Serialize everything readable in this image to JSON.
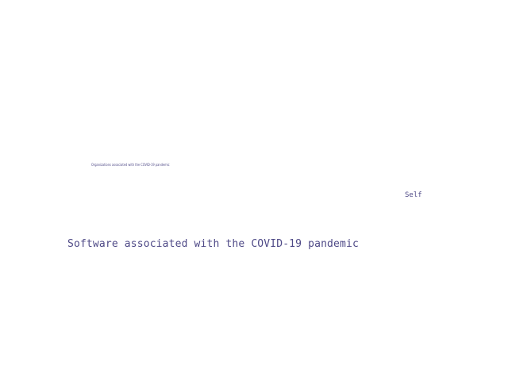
{
  "links": {
    "organizations": "Organizations associated with the COVID-19 pandemic",
    "self": "Self",
    "software": "Software associated with the COVID-19 pandemic"
  },
  "colors": {
    "link_text": "#4f4a87",
    "background": "#ffffff"
  }
}
